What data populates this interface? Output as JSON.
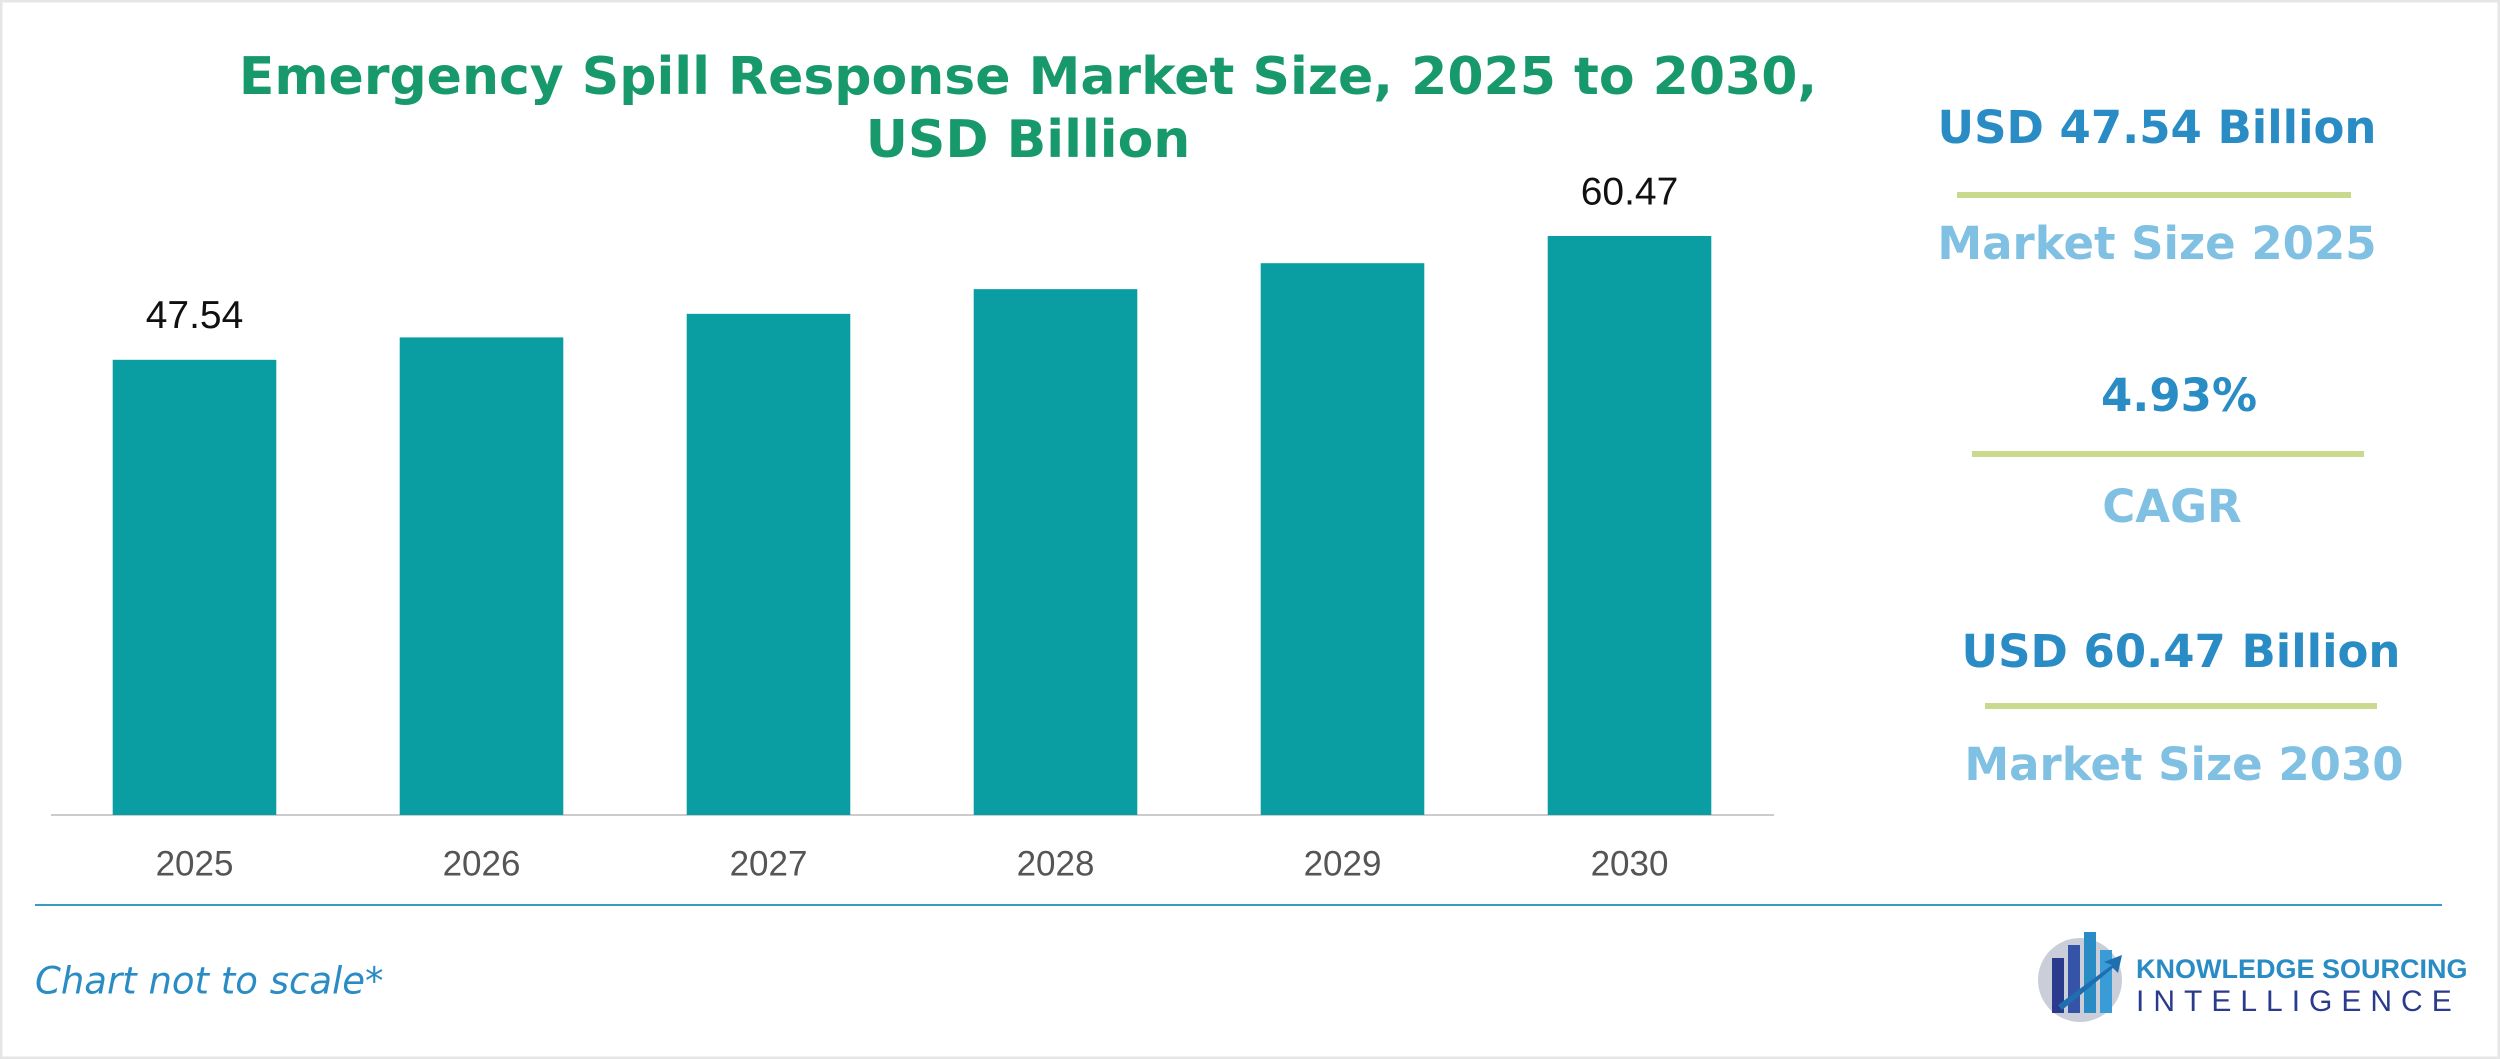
{
  "chart_data": {
    "type": "bar",
    "title": [
      "Emergency Spill Response Market Size, 2025 to 2030,",
      "USD Billion"
    ],
    "categories": [
      "2025",
      "2026",
      "2027",
      "2028",
      "2029",
      "2030"
    ],
    "values": [
      47.54,
      49.88,
      52.34,
      54.92,
      57.63,
      60.47
    ],
    "value_labels": [
      "47.54",
      null,
      null,
      null,
      null,
      "60.47"
    ],
    "color": "#0a9da1"
  },
  "highlights": [
    {
      "value": "USD 47.54 Billion",
      "label": "Market Size 2025"
    },
    {
      "value": "4.93%",
      "label": "CAGR"
    },
    {
      "value": "USD 60.47 Billion",
      "label": "Market Size 2030"
    }
  ],
  "footnote": "Chart not to scale*",
  "logo": {
    "line1": "KNOWLEDGE SOURCING",
    "line2": "INTELLIGENCE"
  }
}
